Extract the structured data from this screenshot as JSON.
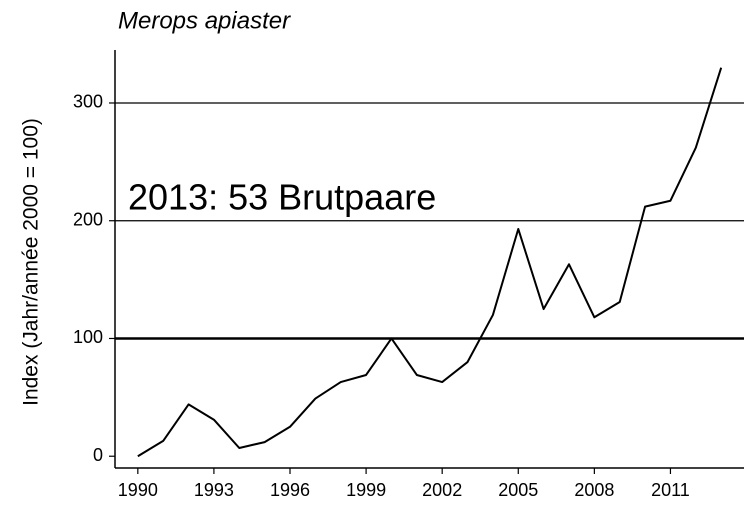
{
  "chart_data": {
    "type": "line",
    "title": "Merops apiaster",
    "ylabel": "Index (Jahr/année 2000 = 100)",
    "annotation": "2013: 53 Brutpaare",
    "x": [
      1990,
      1991,
      1992,
      1993,
      1994,
      1995,
      1996,
      1997,
      1998,
      1999,
      2000,
      2001,
      2002,
      2003,
      2004,
      2005,
      2006,
      2007,
      2008,
      2009,
      2010,
      2011,
      2012,
      2013
    ],
    "series": [
      {
        "name": "Merops apiaster",
        "color": "#000000",
        "values": [
          0,
          13,
          44,
          31,
          7,
          12,
          25,
          49,
          63,
          69,
          100,
          69,
          63,
          80,
          120,
          193,
          125,
          163,
          118,
          131,
          212,
          217,
          262,
          330
        ]
      }
    ],
    "xlim": [
      1989.1,
      2013.9
    ],
    "xticks": [
      1990,
      1993,
      1996,
      1999,
      2002,
      2005,
      2008,
      2011
    ],
    "ylim": [
      -10,
      345
    ],
    "yticks": [
      0,
      100,
      200,
      300
    ],
    "ygrid": [
      100,
      200,
      300
    ],
    "reference_line": 100
  }
}
